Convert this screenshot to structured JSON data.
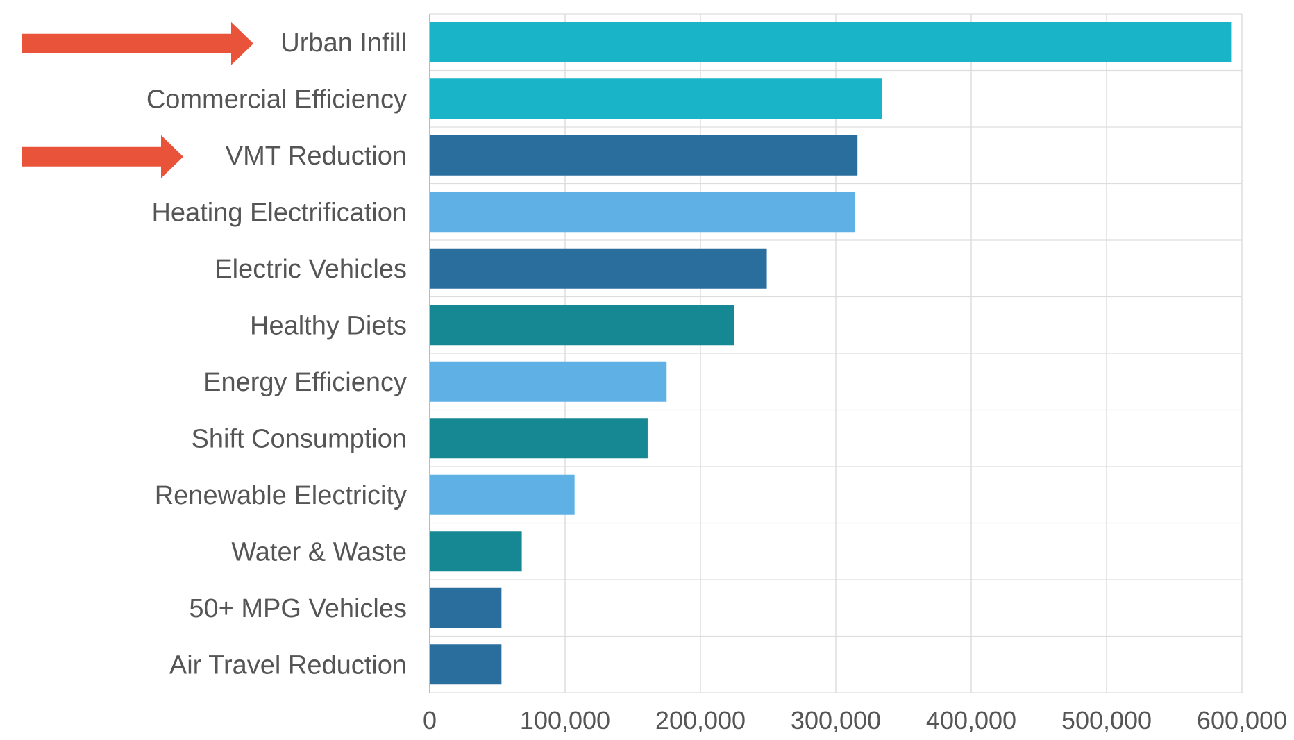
{
  "chart_data": {
    "type": "bar",
    "orientation": "horizontal",
    "categories": [
      "Urban Infill",
      "Commercial Efficiency",
      "VMT Reduction",
      "Heating Electrification",
      "Electric Vehicles",
      "Healthy Diets",
      "Energy Efficiency",
      "Shift Consumption",
      "Renewable Electricity",
      "Water & Waste",
      "50+ MPG Vehicles",
      "Air Travel Reduction"
    ],
    "values": [
      592000,
      334000,
      316000,
      314000,
      249000,
      225000,
      175000,
      161000,
      107000,
      68000,
      53000,
      53000
    ],
    "bar_colors": [
      "#1ab4c9",
      "#1ab4c9",
      "#2a6e9e",
      "#5eb0e5",
      "#2a6e9e",
      "#168893",
      "#5eb0e5",
      "#168893",
      "#5eb0e5",
      "#168893",
      "#2a6e9e",
      "#2a6e9e"
    ],
    "xlim": [
      0,
      600000
    ],
    "x_ticks": [
      0,
      100000,
      200000,
      300000,
      400000,
      500000,
      600000
    ],
    "x_tick_labels": [
      "0",
      "100,000",
      "200,000",
      "300,000",
      "400,000",
      "500,000",
      "600,000"
    ],
    "title": "",
    "xlabel": "",
    "ylabel": "",
    "grid": true,
    "legend": "none"
  },
  "annotations": {
    "arrow_color": "#e8533a",
    "arrow_targets": [
      "Urban Infill",
      "VMT Reduction"
    ]
  },
  "colors": {
    "label_text": "#555555",
    "grid": "#dddddd",
    "axis": "#bbbbbb"
  }
}
